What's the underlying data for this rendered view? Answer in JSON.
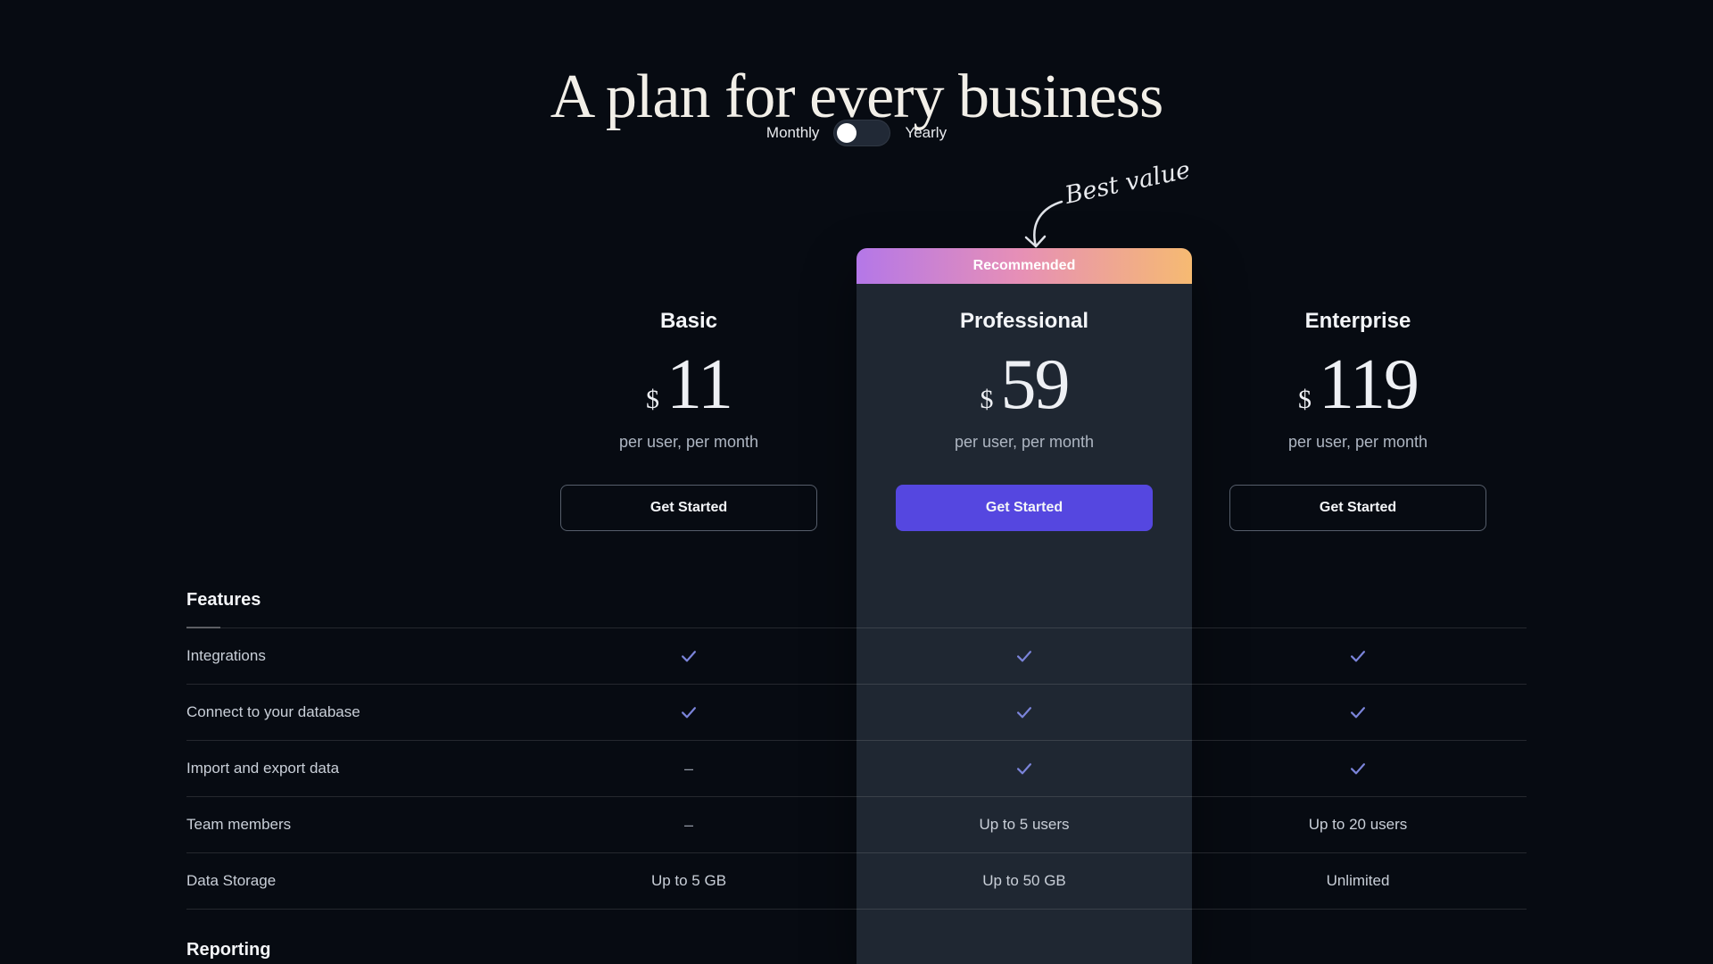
{
  "page": {
    "title": "A plan for every business",
    "annotation_text": "Best value",
    "toggle": {
      "monthly": "Monthly",
      "yearly": "Yearly",
      "selected": "monthly"
    }
  },
  "recommended_badge": "Recommended",
  "plans": [
    {
      "id": "basic",
      "name": "Basic",
      "currency": "$",
      "price": "11",
      "period": "per user, per month",
      "cta": "Get Started",
      "recommended": false
    },
    {
      "id": "professional",
      "name": "Professional",
      "currency": "$",
      "price": "59",
      "period": "per user, per month",
      "cta": "Get Started",
      "recommended": true
    },
    {
      "id": "enterprise",
      "name": "Enterprise",
      "currency": "$",
      "price": "119",
      "period": "per user, per month",
      "cta": "Get Started",
      "recommended": false
    }
  ],
  "feature_sections": [
    {
      "title": "Features",
      "rows": [
        {
          "label": "Integrations",
          "values": [
            "check",
            "check",
            "check"
          ]
        },
        {
          "label": "Connect to your database",
          "values": [
            "check",
            "check",
            "check"
          ]
        },
        {
          "label": "Import and export data",
          "values": [
            "dash",
            "check",
            "check"
          ]
        },
        {
          "label": "Team members",
          "values": [
            "dash",
            "Up to 5 users",
            "Up to 20 users"
          ]
        },
        {
          "label": "Data Storage",
          "values": [
            "Up to 5 GB",
            "Up to 50 GB",
            "Unlimited"
          ]
        }
      ]
    },
    {
      "title": "Reporting",
      "rows": []
    }
  ],
  "colors": {
    "background": "#070b12",
    "card": "#1f2732",
    "accent": "#5547e0",
    "check": "#7b84da",
    "badge_gradient_start": "#b477e8",
    "badge_gradient_mid": "#e68fb7",
    "badge_gradient_end": "#f6ba72"
  }
}
